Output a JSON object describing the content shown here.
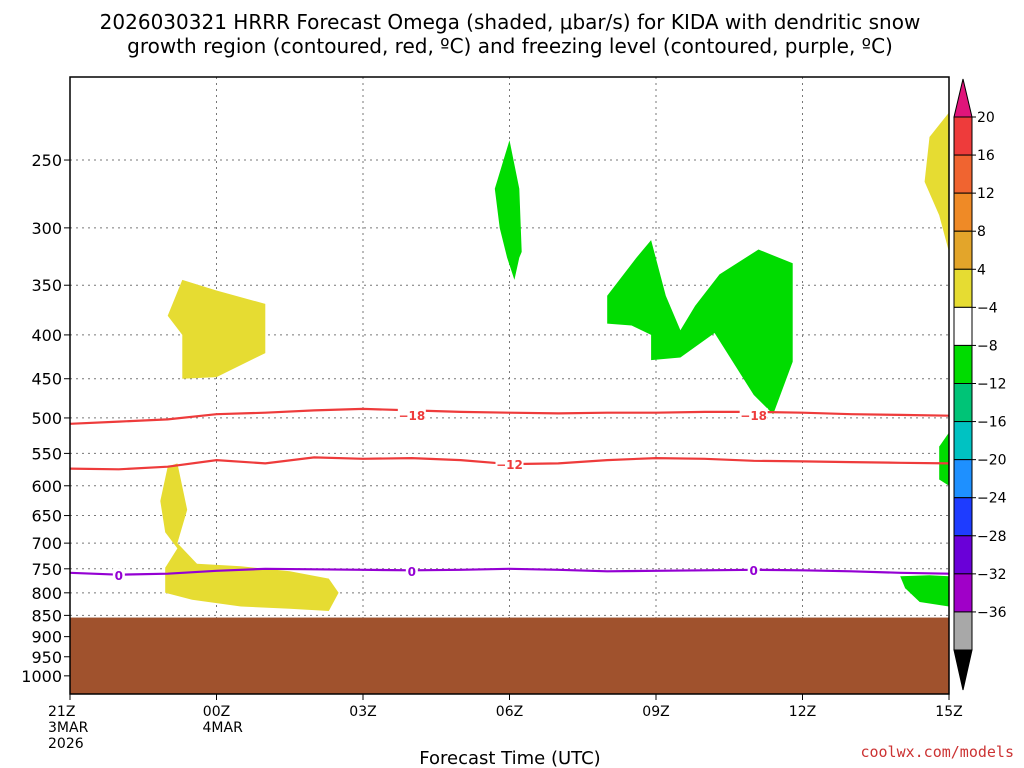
{
  "chart_data": {
    "type": "heatmap",
    "title_line1": "2026030321 HRRR Forecast Omega (shaded, μbar/s) for KIDA with dendritic snow",
    "title_line2": "growth region (contoured, red, ºC) and freezing level (contoured, purple, ºC)",
    "xlabel": "Forecast Time (UTC)",
    "credit": "coolwx.com/models",
    "x_range": [
      0,
      18
    ],
    "y_range": [
      200,
      1050
    ],
    "x_ticks": [
      {
        "x": 0,
        "lines": [
          "21Z",
          "3MAR",
          "2026"
        ]
      },
      {
        "x": 3,
        "lines": [
          "00Z",
          "4MAR"
        ]
      },
      {
        "x": 6,
        "lines": [
          "03Z"
        ]
      },
      {
        "x": 9,
        "lines": [
          "06Z"
        ]
      },
      {
        "x": 12,
        "lines": [
          "09Z"
        ]
      },
      {
        "x": 15,
        "lines": [
          "12Z"
        ]
      },
      {
        "x": 18,
        "lines": [
          "15Z"
        ]
      }
    ],
    "y_ticks": [
      250,
      300,
      350,
      400,
      450,
      500,
      550,
      600,
      650,
      700,
      750,
      800,
      850,
      900,
      950,
      1000
    ],
    "colorbar": {
      "labels": [
        "20",
        "16",
        "12",
        "8",
        "4",
        "−4",
        "−8",
        "−12",
        "−16",
        "−20",
        "−24",
        "−28",
        "−32",
        "−36"
      ],
      "colors": [
        "#ee3b3b",
        "#f06430",
        "#ef8a26",
        "#e3a52a",
        "#e6dc32",
        "#ffffff",
        "#00dc00",
        "#00c477",
        "#00c2c2",
        "#1e90ff",
        "#1e3cff",
        "#6a00d8",
        "#a000c8",
        "#a8a8a8"
      ],
      "top_color": "#e0147a",
      "bottom_color": "#000000"
    },
    "ground": {
      "color": "#a0522d",
      "surface_pressure": 855
    },
    "shaded_regions": [
      {
        "name": "yellow-region-1",
        "color": "#e6dc32",
        "points": [
          [
            2.0,
            380
          ],
          [
            2.3,
            345
          ],
          [
            3.0,
            355
          ],
          [
            4.0,
            368
          ],
          [
            4.0,
            420
          ],
          [
            3.0,
            448
          ],
          [
            2.3,
            450
          ],
          [
            2.3,
            400
          ]
        ]
      },
      {
        "name": "yellow-region-2",
        "color": "#e6dc32",
        "points": [
          [
            1.85,
            625
          ],
          [
            2.0,
            570
          ],
          [
            2.2,
            565
          ],
          [
            2.4,
            640
          ],
          [
            2.2,
            700
          ],
          [
            2.6,
            740
          ],
          [
            3.5,
            745
          ],
          [
            4.5,
            755
          ],
          [
            5.3,
            770
          ],
          [
            5.5,
            800
          ],
          [
            5.3,
            840
          ],
          [
            4.5,
            835
          ],
          [
            3.5,
            830
          ],
          [
            2.5,
            815
          ],
          [
            1.95,
            800
          ],
          [
            1.95,
            748
          ],
          [
            2.2,
            710
          ],
          [
            1.95,
            680
          ]
        ]
      },
      {
        "name": "yellow-region-3",
        "color": "#e6dc32",
        "points": [
          [
            17.5,
            265
          ],
          [
            17.6,
            235
          ],
          [
            18.0,
            220
          ],
          [
            18.0,
            320
          ],
          [
            17.8,
            290
          ]
        ]
      },
      {
        "name": "green-region-1",
        "color": "#00dc00",
        "points": [
          [
            8.7,
            270
          ],
          [
            9.0,
            237
          ],
          [
            9.2,
            270
          ],
          [
            9.25,
            320
          ],
          [
            9.2,
            325
          ],
          [
            9.1,
            345
          ],
          [
            8.95,
            325
          ],
          [
            8.8,
            300
          ]
        ]
      },
      {
        "name": "green-region-2",
        "color": "#00dc00",
        "points": [
          [
            11.0,
            360
          ],
          [
            11.0,
            388
          ],
          [
            11.5,
            390
          ],
          [
            11.9,
            400
          ],
          [
            11.9,
            428
          ],
          [
            12.5,
            425
          ],
          [
            13.2,
            398
          ],
          [
            14.0,
            470
          ],
          [
            14.4,
            495
          ],
          [
            14.8,
            430
          ],
          [
            14.8,
            330
          ],
          [
            14.1,
            318
          ],
          [
            13.3,
            340
          ],
          [
            12.8,
            370
          ],
          [
            12.5,
            395
          ],
          [
            12.2,
            360
          ],
          [
            11.9,
            310
          ],
          [
            11.6,
            325
          ]
        ]
      },
      {
        "name": "green-region-3",
        "color": "#00dc00",
        "points": [
          [
            17.8,
            540
          ],
          [
            18.0,
            520
          ],
          [
            18.0,
            600
          ],
          [
            17.8,
            590
          ],
          [
            17.8,
            570
          ]
        ]
      },
      {
        "name": "green-region-4",
        "color": "#00dc00",
        "points": [
          [
            17.0,
            765
          ],
          [
            17.6,
            763
          ],
          [
            18.0,
            765
          ],
          [
            18.0,
            830
          ],
          [
            17.4,
            820
          ],
          [
            17.1,
            790
          ]
        ]
      }
    ],
    "contours": [
      {
        "name": "contour-minus-18",
        "color": "#ee3b3b",
        "label": "−18",
        "label_points": [
          [
            7.0,
            496
          ],
          [
            14.0,
            496
          ]
        ],
        "points": [
          [
            0,
            508
          ],
          [
            1,
            505
          ],
          [
            2,
            502
          ],
          [
            3,
            495
          ],
          [
            4,
            493
          ],
          [
            5,
            490
          ],
          [
            6,
            488
          ],
          [
            7,
            490
          ],
          [
            8,
            492
          ],
          [
            9,
            493
          ],
          [
            10,
            494
          ],
          [
            11,
            493
          ],
          [
            12,
            493
          ],
          [
            13,
            492
          ],
          [
            14,
            492
          ],
          [
            15,
            493
          ],
          [
            16,
            495
          ],
          [
            17,
            496
          ],
          [
            18,
            497
          ]
        ]
      },
      {
        "name": "contour-minus-12",
        "color": "#ee3b3b",
        "label": "−12",
        "label_points": [
          [
            9.0,
            566
          ]
        ],
        "points": [
          [
            0,
            573
          ],
          [
            1,
            574
          ],
          [
            2,
            570
          ],
          [
            3,
            560
          ],
          [
            4,
            565
          ],
          [
            5,
            556
          ],
          [
            6,
            558
          ],
          [
            7,
            557
          ],
          [
            8,
            560
          ],
          [
            9,
            566
          ],
          [
            10,
            565
          ],
          [
            11,
            560
          ],
          [
            12,
            557
          ],
          [
            13,
            558
          ],
          [
            14,
            561
          ],
          [
            15,
            562
          ],
          [
            16,
            563
          ],
          [
            17,
            564
          ],
          [
            18,
            565
          ]
        ]
      },
      {
        "name": "contour-freezing-0",
        "color": "#9400d3",
        "label": "0",
        "label_points": [
          [
            1.0,
            763
          ],
          [
            7.0,
            754
          ],
          [
            14.0,
            752
          ]
        ],
        "points": [
          [
            0,
            758
          ],
          [
            1,
            762
          ],
          [
            2,
            760
          ],
          [
            3,
            754
          ],
          [
            4,
            750
          ],
          [
            5,
            751
          ],
          [
            6,
            752
          ],
          [
            7,
            753
          ],
          [
            8,
            752
          ],
          [
            9,
            750
          ],
          [
            10,
            752
          ],
          [
            11,
            755
          ],
          [
            12,
            754
          ],
          [
            13,
            753
          ],
          [
            14,
            752
          ],
          [
            15,
            753
          ],
          [
            16,
            755
          ],
          [
            17,
            758
          ],
          [
            18,
            760
          ]
        ]
      }
    ]
  }
}
